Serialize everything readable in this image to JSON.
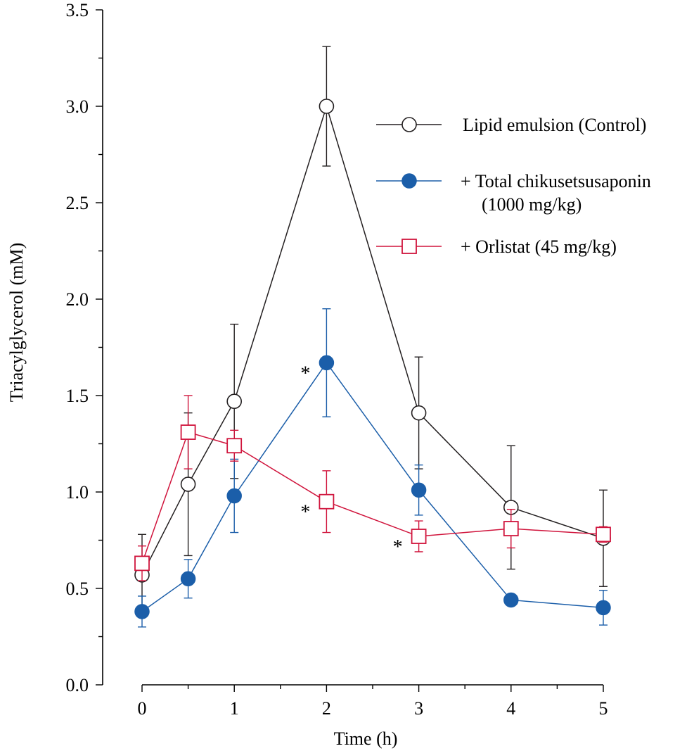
{
  "chart_data": {
    "type": "line",
    "xlabel": "Time (h)",
    "ylabel": "Triacylglycerol (mM)",
    "xlim": [
      0,
      5
    ],
    "ylim": [
      0,
      3.5
    ],
    "x_ticks": [
      "0",
      "1",
      "2",
      "3",
      "4",
      "5"
    ],
    "y_ticks": [
      "0.0",
      "0.5",
      "1.0",
      "1.5",
      "2.0",
      "2.5",
      "3.0",
      "3.5"
    ],
    "grid": false,
    "legend_position": "top-right",
    "series": [
      {
        "name": "Lipid emulsion (Control)",
        "color": "#231f20",
        "marker": "open-circle",
        "x": [
          0,
          0.5,
          1,
          2,
          3,
          4,
          5
        ],
        "y": [
          0.57,
          1.04,
          1.47,
          3.0,
          1.41,
          0.92,
          0.76
        ],
        "err": [
          0.21,
          0.37,
          0.4,
          0.31,
          0.29,
          0.32,
          0.25
        ]
      },
      {
        "name": "+ Total chikusetsusaponin",
        "name_line2": "(1000 mg/kg)",
        "color": "#1b5ea9",
        "marker": "filled-circle",
        "x": [
          0,
          0.5,
          1,
          2,
          3,
          4,
          5
        ],
        "y": [
          0.38,
          0.55,
          0.98,
          1.67,
          1.01,
          0.44,
          0.4
        ],
        "err": [
          0.08,
          0.1,
          0.19,
          0.28,
          0.13,
          0.02,
          0.09
        ]
      },
      {
        "name": "+ Orlistat (45 mg/kg)",
        "color": "#d0143c",
        "marker": "open-square",
        "x": [
          0,
          0.5,
          1,
          2,
          3,
          4,
          5
        ],
        "y": [
          0.63,
          1.31,
          1.24,
          0.95,
          0.77,
          0.81,
          0.78
        ],
        "err": [
          0.09,
          0.19,
          0.08,
          0.16,
          0.08,
          0.1,
          0.04
        ]
      }
    ],
    "annotations": [
      {
        "text": "*",
        "x": 2,
        "series": 1
      },
      {
        "text": "*",
        "x": 2,
        "series": 2
      },
      {
        "text": "*",
        "x": 3,
        "series": 2
      }
    ]
  }
}
